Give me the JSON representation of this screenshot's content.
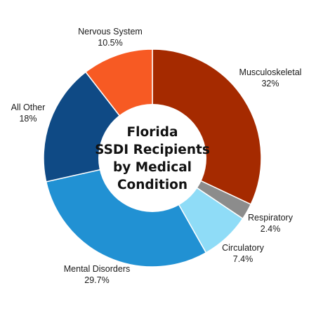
{
  "chart_data": {
    "type": "pie",
    "title_lines": [
      "Florida",
      "SSDI Recipients",
      "by Medical",
      "Condition"
    ],
    "slices": [
      {
        "label": "Musculoskeletal",
        "value_text": "32%",
        "value": 32,
        "color": "#a52a00"
      },
      {
        "label": "Respiratory",
        "value_text": "2.4%",
        "value": 2.4,
        "color": "#8c8c8c"
      },
      {
        "label": "Circulatory",
        "value_text": "7.4%",
        "value": 7.4,
        "color": "#8fdcf7"
      },
      {
        "label": "Mental Disorders",
        "value_text": "29.7%",
        "value": 29.7,
        "color": "#2191d3"
      },
      {
        "label": "All Other",
        "value_text": "18%",
        "value": 18,
        "color": "#0f4a85"
      },
      {
        "label": "Nervous System",
        "value_text": "10.5%",
        "value": 10.5,
        "color": "#f75a23"
      }
    ],
    "legend": "none"
  }
}
